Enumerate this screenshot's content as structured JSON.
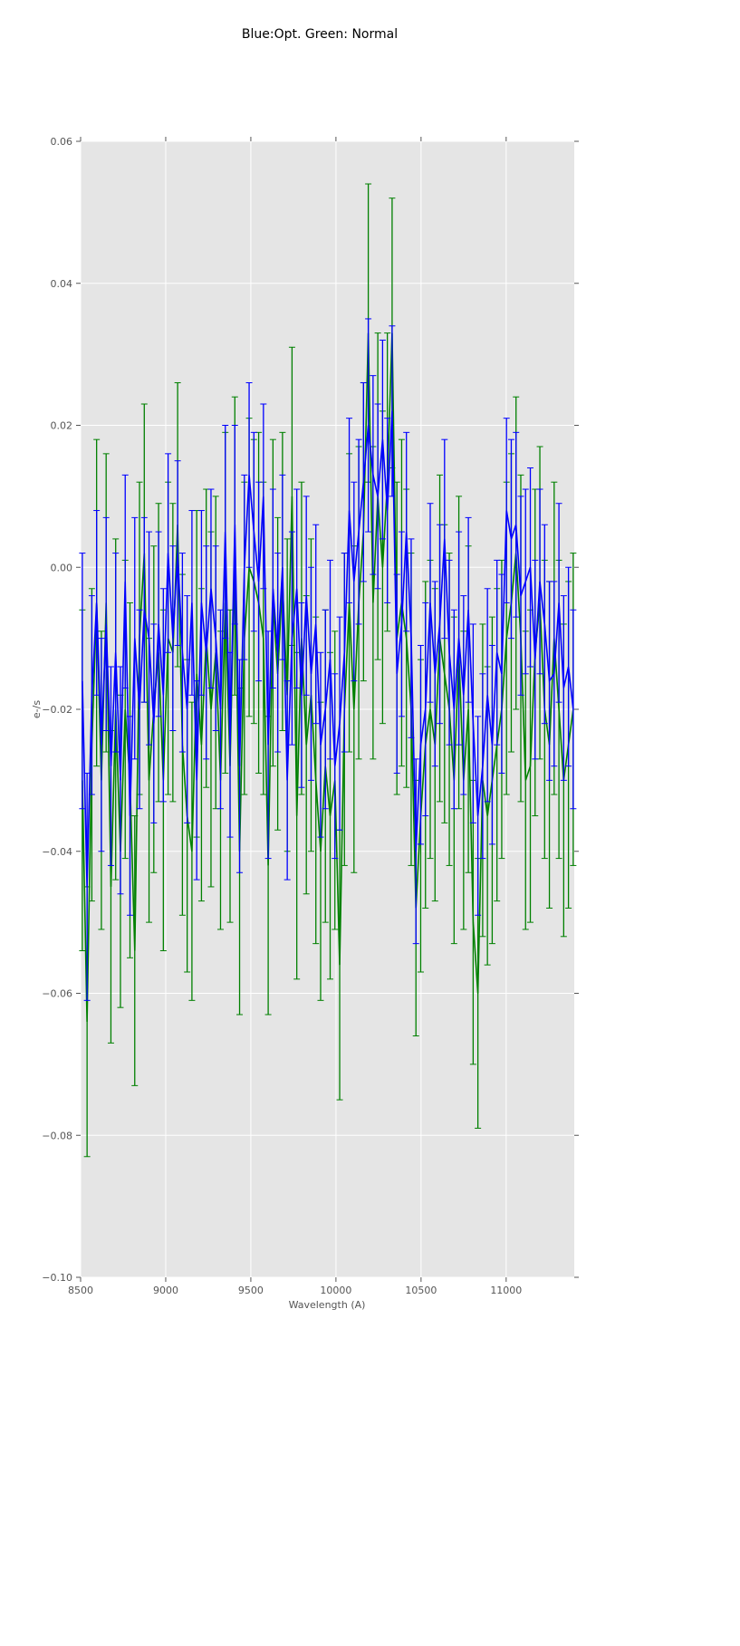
{
  "chart_data": {
    "type": "line",
    "title": "Blue:Opt. Green: Normal",
    "xlabel": "Wavelength (A)",
    "ylabel": "e-/s",
    "xlim": [
      8500,
      11400
    ],
    "ylim": [
      -0.1,
      0.06
    ],
    "xticks": [
      8500,
      9000,
      9500,
      10000,
      10500,
      11000
    ],
    "xtick_labels": [
      "8500",
      "9000",
      "9500",
      "10000",
      "10500",
      "11000"
    ],
    "yticks": [
      0.06,
      0.04,
      0.02,
      0.0,
      -0.02,
      -0.04,
      -0.06,
      -0.08,
      -0.1
    ],
    "ytick_labels": [
      "0.06",
      "0.04",
      "0.02",
      "0.00",
      "−0.02",
      "−0.04",
      "−0.06",
      "−0.08",
      "−0.10"
    ],
    "grid": true,
    "x": [
      8510,
      8538,
      8566,
      8594,
      8622,
      8650,
      8678,
      8706,
      8734,
      8762,
      8790,
      8818,
      8846,
      8874,
      8902,
      8930,
      8958,
      8986,
      9014,
      9042,
      9070,
      9098,
      9126,
      9154,
      9182,
      9210,
      9238,
      9266,
      9294,
      9322,
      9350,
      9378,
      9406,
      9434,
      9462,
      9490,
      9518,
      9546,
      9574,
      9602,
      9630,
      9658,
      9686,
      9714,
      9742,
      9770,
      9798,
      9826,
      9854,
      9882,
      9910,
      9938,
      9966,
      9994,
      10022,
      10050,
      10078,
      10106,
      10134,
      10162,
      10190,
      10218,
      10246,
      10274,
      10302,
      10330,
      10358,
      10386,
      10414,
      10442,
      10470,
      10498,
      10526,
      10554,
      10582,
      10610,
      10638,
      10666,
      10694,
      10722,
      10750,
      10778,
      10806,
      10834,
      10862,
      10890,
      10918,
      10946,
      10974,
      11002,
      11030,
      11058,
      11086,
      11114,
      11142,
      11170,
      11198,
      11226,
      11254,
      11282,
      11310,
      11338,
      11366,
      11394
    ],
    "series": [
      {
        "name": "Normal",
        "color": "#008000",
        "y": [
          -0.03,
          -0.064,
          -0.025,
          -0.005,
          -0.03,
          -0.005,
          -0.045,
          -0.02,
          -0.04,
          -0.02,
          -0.03,
          -0.054,
          -0.01,
          0.002,
          -0.03,
          -0.02,
          -0.012,
          -0.03,
          -0.01,
          -0.012,
          0.006,
          -0.025,
          -0.035,
          -0.04,
          -0.015,
          -0.025,
          -0.01,
          -0.02,
          -0.012,
          -0.03,
          -0.005,
          -0.028,
          0.003,
          -0.04,
          -0.01,
          0.0,
          -0.002,
          -0.005,
          -0.01,
          -0.042,
          -0.005,
          -0.015,
          -0.002,
          -0.018,
          0.01,
          -0.035,
          -0.01,
          -0.025,
          -0.018,
          -0.03,
          -0.04,
          -0.028,
          -0.035,
          -0.03,
          -0.056,
          -0.02,
          -0.005,
          -0.02,
          -0.005,
          0.005,
          0.033,
          -0.005,
          0.01,
          0.0,
          0.012,
          0.033,
          -0.01,
          -0.005,
          -0.01,
          -0.02,
          -0.048,
          -0.035,
          -0.025,
          -0.02,
          -0.025,
          -0.01,
          -0.015,
          -0.02,
          -0.03,
          -0.012,
          -0.03,
          -0.02,
          -0.05,
          -0.06,
          -0.03,
          -0.035,
          -0.03,
          -0.025,
          -0.02,
          -0.01,
          -0.005,
          0.002,
          -0.01,
          -0.03,
          -0.028,
          -0.012,
          -0.005,
          -0.02,
          -0.025,
          -0.01,
          -0.02,
          -0.03,
          -0.025,
          -0.02
        ],
        "yerr": [
          0.024,
          0.019,
          0.022,
          0.023,
          0.021,
          0.021,
          0.022,
          0.024,
          0.022,
          0.021,
          0.025,
          0.019,
          0.022,
          0.021,
          0.02,
          0.023,
          0.021,
          0.024,
          0.022,
          0.021,
          0.02,
          0.024,
          0.022,
          0.021,
          0.023,
          0.022,
          0.021,
          0.025,
          0.022,
          0.021,
          0.024,
          0.022,
          0.021,
          0.023,
          0.022,
          0.021,
          0.02,
          0.024,
          0.022,
          0.021,
          0.023,
          0.022,
          0.021,
          0.022,
          0.021,
          0.023,
          0.022,
          0.021,
          0.022,
          0.023,
          0.021,
          0.022,
          0.023,
          0.021,
          0.019,
          0.022,
          0.021,
          0.023,
          0.022,
          0.021,
          0.021,
          0.022,
          0.023,
          0.022,
          0.021,
          0.019,
          0.022,
          0.023,
          0.021,
          0.022,
          0.018,
          0.022,
          0.023,
          0.021,
          0.022,
          0.023,
          0.021,
          0.022,
          0.023,
          0.022,
          0.021,
          0.023,
          0.02,
          0.019,
          0.022,
          0.021,
          0.023,
          0.022,
          0.021,
          0.022,
          0.021,
          0.022,
          0.023,
          0.021,
          0.022,
          0.023,
          0.022,
          0.021,
          0.023,
          0.022,
          0.021,
          0.022,
          0.023,
          0.022
        ]
      },
      {
        "name": "Opt.",
        "color": "#0000ff",
        "y": [
          -0.016,
          -0.045,
          -0.018,
          -0.005,
          -0.025,
          -0.008,
          -0.028,
          -0.012,
          -0.03,
          -0.002,
          -0.035,
          -0.01,
          -0.02,
          -0.006,
          -0.01,
          -0.022,
          -0.008,
          -0.018,
          0.002,
          -0.01,
          0.002,
          -0.012,
          -0.02,
          -0.005,
          -0.03,
          -0.005,
          -0.012,
          -0.003,
          -0.01,
          -0.02,
          0.005,
          -0.025,
          0.006,
          -0.028,
          0.0,
          0.013,
          0.005,
          -0.002,
          0.01,
          -0.025,
          -0.003,
          -0.012,
          0.0,
          -0.03,
          -0.01,
          -0.003,
          -0.018,
          -0.004,
          -0.015,
          -0.008,
          -0.025,
          -0.02,
          -0.013,
          -0.028,
          -0.022,
          -0.012,
          0.008,
          -0.002,
          0.005,
          0.012,
          0.02,
          0.013,
          0.01,
          0.018,
          0.008,
          0.022,
          -0.015,
          -0.008,
          0.005,
          -0.01,
          -0.04,
          -0.025,
          -0.02,
          -0.005,
          -0.015,
          -0.008,
          0.004,
          -0.012,
          -0.02,
          -0.01,
          -0.018,
          -0.006,
          -0.022,
          -0.035,
          -0.028,
          -0.018,
          -0.025,
          -0.012,
          -0.015,
          0.008,
          0.004,
          0.006,
          -0.004,
          -0.002,
          0.0,
          -0.013,
          -0.002,
          -0.008,
          -0.016,
          -0.015,
          -0.005,
          -0.017,
          -0.014,
          -0.02
        ],
        "yerr": [
          0.018,
          0.016,
          0.014,
          0.013,
          0.015,
          0.015,
          0.014,
          0.014,
          0.016,
          0.015,
          0.014,
          0.017,
          0.014,
          0.013,
          0.015,
          0.014,
          0.013,
          0.015,
          0.014,
          0.013,
          0.013,
          0.014,
          0.016,
          0.013,
          0.014,
          0.013,
          0.015,
          0.014,
          0.013,
          0.014,
          0.015,
          0.013,
          0.014,
          0.015,
          0.013,
          0.013,
          0.014,
          0.014,
          0.013,
          0.016,
          0.014,
          0.014,
          0.013,
          0.014,
          0.015,
          0.014,
          0.013,
          0.014,
          0.015,
          0.014,
          0.013,
          0.014,
          0.014,
          0.013,
          0.015,
          0.014,
          0.013,
          0.014,
          0.013,
          0.014,
          0.015,
          0.014,
          0.013,
          0.014,
          0.013,
          0.012,
          0.014,
          0.013,
          0.014,
          0.014,
          0.013,
          0.014,
          0.015,
          0.014,
          0.013,
          0.014,
          0.014,
          0.013,
          0.014,
          0.015,
          0.014,
          0.013,
          0.014,
          0.014,
          0.013,
          0.015,
          0.014,
          0.013,
          0.014,
          0.013,
          0.014,
          0.013,
          0.014,
          0.013,
          0.014,
          0.014,
          0.013,
          0.014,
          0.014,
          0.013,
          0.014,
          0.013,
          0.014,
          0.014
        ]
      }
    ]
  }
}
